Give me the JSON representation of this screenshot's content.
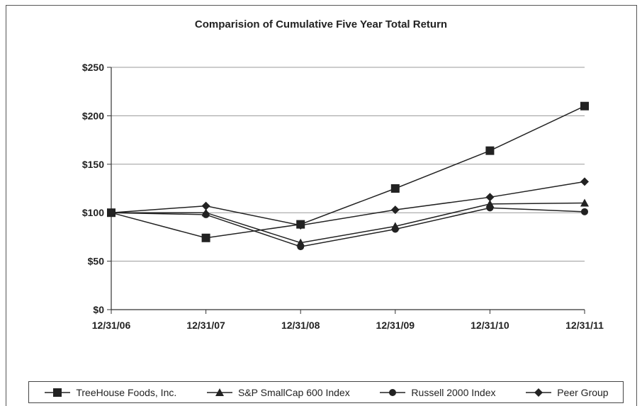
{
  "chart_data": {
    "type": "line",
    "title": "Comparision of Cumulative Five Year Total Return",
    "categories": [
      "12/31/06",
      "12/31/07",
      "12/31/08",
      "12/31/09",
      "12/31/10",
      "12/31/11"
    ],
    "ylim": [
      0,
      250
    ],
    "yticks": [
      0,
      50,
      100,
      150,
      200,
      250
    ],
    "ytick_labels": [
      "$0",
      "$50",
      "$100",
      "$150",
      "$200",
      "$250"
    ],
    "grid": true,
    "legend_position": "bottom",
    "series": [
      {
        "name": "TreeHouse Foods, Inc.",
        "marker": "square",
        "values": [
          100,
          74,
          88,
          125,
          164,
          210
        ]
      },
      {
        "name": "S&P SmallCap 600 Index",
        "marker": "triangle",
        "values": [
          100,
          100,
          69,
          86,
          109,
          110
        ]
      },
      {
        "name": "Russell 2000 Index",
        "marker": "circle",
        "values": [
          100,
          98,
          65,
          83,
          105,
          101
        ]
      },
      {
        "name": "Peer Group",
        "marker": "diamond",
        "values": [
          100,
          107,
          87,
          103,
          116,
          132
        ]
      }
    ],
    "line_color": "#222222"
  }
}
